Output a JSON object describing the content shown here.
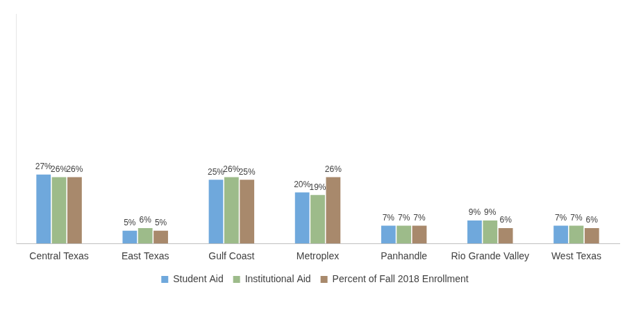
{
  "chart_data": {
    "type": "bar",
    "categories": [
      "Central Texas",
      "East Texas",
      "Gulf Coast",
      "Metroplex",
      "Panhandle",
      "Rio Grande Valley",
      "West Texas"
    ],
    "series": [
      {
        "name": "Student Aid",
        "color": "#6fa8dc",
        "values": [
          27,
          5,
          25,
          20,
          7,
          9,
          7
        ],
        "value_labels": [
          "27%",
          "5%",
          "25%",
          "20%",
          "7%",
          "9%",
          "7%"
        ]
      },
      {
        "name": "Institutional Aid",
        "color": "#9dbb8a",
        "values": [
          26,
          6,
          26,
          19,
          7,
          9,
          7
        ],
        "value_labels": [
          "26%",
          "6%",
          "26%",
          "19%",
          "7%",
          "9%",
          "7%"
        ]
      },
      {
        "name": "Percent of Fall 2018 Enrollment",
        "color": "#a8896c",
        "values": [
          26,
          5,
          25,
          26,
          7,
          6,
          6
        ],
        "value_labels": [
          "26%",
          "5%",
          "25%",
          "26%",
          "7%",
          "6%",
          "6%"
        ]
      }
    ],
    "ylim": [
      0,
      90
    ],
    "grid": false,
    "legend": "bottom",
    "data_labels": true,
    "tick_labels": "x"
  }
}
